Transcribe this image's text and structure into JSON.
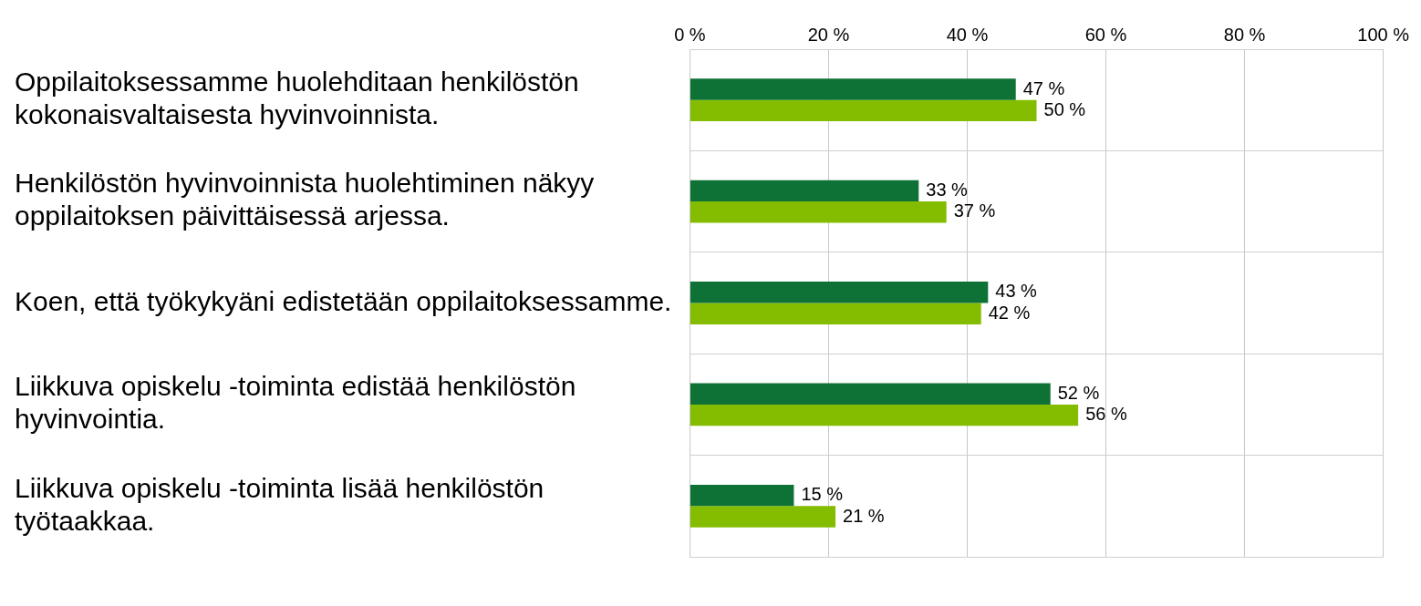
{
  "chart_data": {
    "type": "bar",
    "orientation": "horizontal",
    "categories": [
      "Oppilaitoksessamme huolehditaan henkilöstön kokonaisvaltaisesta hyvinvoinnista.",
      "Henkilöstön hyvinvoinnista huolehtiminen näkyy oppilaitoksen päivittäisessä arjessa.",
      "Koen, että työkykyäni edistetään oppilaitoksessamme.",
      "Liikkuva opiskelu -toiminta edistää henkilöstön hyvinvointia.",
      "Liikkuva opiskelu -toiminta lisää henkilöstön työtaakkaa."
    ],
    "series": [
      {
        "color": "#0e7236",
        "values": [
          47,
          33,
          43,
          52,
          15
        ],
        "value_labels": [
          "47 %",
          "33 %",
          "43 %",
          "52 %",
          "15 %"
        ]
      },
      {
        "color": "#84bd00",
        "values": [
          50,
          37,
          42,
          56,
          21
        ],
        "value_labels": [
          "50 %",
          "37 %",
          "42 %",
          "56 %",
          "21 %"
        ]
      }
    ],
    "xlim": [
      0,
      100
    ],
    "xticks": [
      {
        "value": 0,
        "label": "0 %"
      },
      {
        "value": 20,
        "label": "20 %"
      },
      {
        "value": 40,
        "label": "40 %"
      },
      {
        "value": 60,
        "label": "60 %"
      },
      {
        "value": 80,
        "label": "80 %"
      },
      {
        "value": 100,
        "label": "100 %"
      }
    ],
    "grid": true,
    "legend": false
  }
}
